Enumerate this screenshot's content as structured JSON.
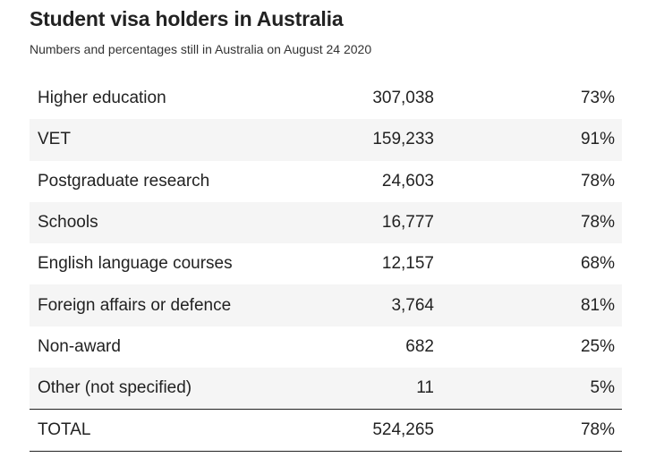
{
  "chart_data": {
    "type": "table",
    "title": "Student visa holders in Australia",
    "subtitle": "Numbers and percentages still in Australia on August 24 2020",
    "columns": [
      "",
      "",
      ""
    ],
    "rows": [
      {
        "label": "Higher education",
        "count": "307,038",
        "percent": "73%"
      },
      {
        "label": "VET",
        "count": "159,233",
        "percent": "91%"
      },
      {
        "label": "Postgraduate research",
        "count": "24,603",
        "percent": "78%"
      },
      {
        "label": "Schools",
        "count": "16,777",
        "percent": "78%"
      },
      {
        "label": "English language courses",
        "count": "12,157",
        "percent": "68%"
      },
      {
        "label": "Foreign affairs or defence",
        "count": "3,764",
        "percent": "81%"
      },
      {
        "label": "Non-award",
        "count": "682",
        "percent": "25%"
      },
      {
        "label": "Other (not specified)",
        "count": "11",
        "percent": "5%"
      }
    ],
    "total": {
      "label": "TOTAL",
      "count": "524,265",
      "percent": "78%"
    }
  },
  "colors": {
    "stripe": "#f5f5f5",
    "text": "#222222",
    "rule": "#222222"
  }
}
